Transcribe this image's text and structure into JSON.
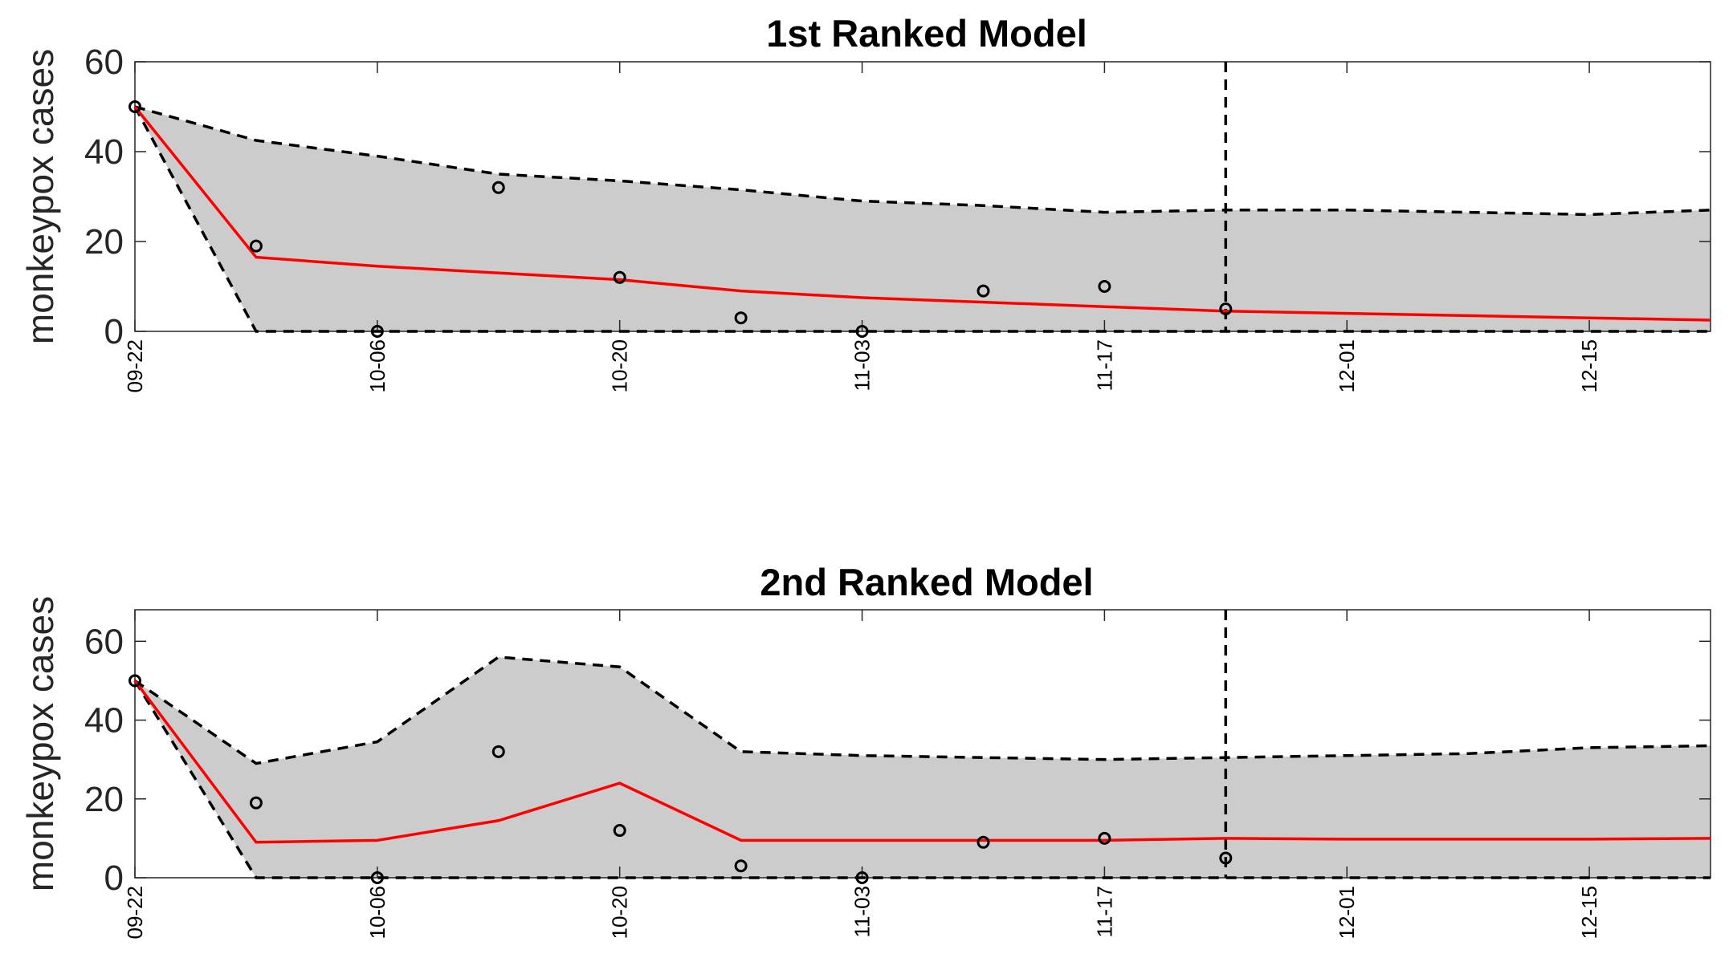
{
  "chart_data": [
    {
      "type": "line",
      "title": "1st Ranked Model",
      "xlabel": "",
      "ylabel": "monkeypox cases",
      "x": [
        "09-22",
        "09-29",
        "10-06",
        "10-13",
        "10-20",
        "10-27",
        "11-03",
        "11-10",
        "11-17",
        "11-24",
        "12-01",
        "12-08",
        "12-15",
        "12-22"
      ],
      "xticks": [
        "09-22",
        "10-06",
        "10-20",
        "11-03",
        "11-17",
        "12-01",
        "12-15"
      ],
      "yticks": [
        0,
        20,
        40,
        60
      ],
      "ylim": [
        0,
        60
      ],
      "forecast_start": "11-24",
      "series": [
        {
          "role": "observed",
          "style": "markers",
          "color": "#000000",
          "values": [
            50,
            19,
            0,
            32,
            12,
            3,
            0,
            9,
            10,
            5,
            null,
            null,
            null,
            null
          ]
        },
        {
          "role": "mean",
          "style": "line",
          "color": "#ff0000",
          "values": [
            50,
            16.5,
            14.5,
            13,
            11.5,
            9,
            7.5,
            6.5,
            5.5,
            4.5,
            4,
            3.5,
            3,
            2.5
          ]
        },
        {
          "role": "upper",
          "style": "dashed",
          "color": "#000000",
          "values": [
            50,
            42.5,
            39,
            35,
            33.5,
            31.5,
            29,
            28,
            26.5,
            27,
            27,
            26.5,
            26,
            27
          ]
        },
        {
          "role": "lower",
          "style": "dashed",
          "color": "#000000",
          "values": [
            50,
            0,
            0,
            0,
            0,
            0,
            0,
            0,
            0,
            0,
            0,
            0,
            0,
            0
          ]
        }
      ]
    },
    {
      "type": "line",
      "title": "2nd Ranked Model",
      "xlabel": "",
      "ylabel": "monkeypox cases",
      "x": [
        "09-22",
        "09-29",
        "10-06",
        "10-13",
        "10-20",
        "10-27",
        "11-03",
        "11-10",
        "11-17",
        "11-24",
        "12-01",
        "12-08",
        "12-15",
        "12-22"
      ],
      "xticks": [
        "09-22",
        "10-06",
        "10-20",
        "11-03",
        "11-17",
        "12-01",
        "12-15"
      ],
      "yticks": [
        0,
        20,
        40,
        60
      ],
      "ylim": [
        0,
        68
      ],
      "forecast_start": "11-24",
      "series": [
        {
          "role": "observed",
          "style": "markers",
          "color": "#000000",
          "values": [
            50,
            19,
            0,
            32,
            12,
            3,
            0,
            9,
            10,
            5,
            null,
            null,
            null,
            null
          ]
        },
        {
          "role": "mean",
          "style": "line",
          "color": "#ff0000",
          "values": [
            50,
            9,
            9.5,
            14.5,
            24,
            9.5,
            9.5,
            9.5,
            9.5,
            10,
            9.8,
            9.8,
            9.8,
            10
          ]
        },
        {
          "role": "upper",
          "style": "dashed",
          "color": "#000000",
          "values": [
            50,
            29,
            34.5,
            56,
            53.5,
            32,
            31,
            30.5,
            30,
            30.5,
            31,
            31.5,
            33,
            33.5
          ]
        },
        {
          "role": "lower",
          "style": "dashed",
          "color": "#000000",
          "values": [
            50,
            0,
            0,
            0,
            0,
            0,
            0,
            0,
            0,
            0,
            0,
            0,
            0,
            0
          ]
        }
      ]
    }
  ]
}
